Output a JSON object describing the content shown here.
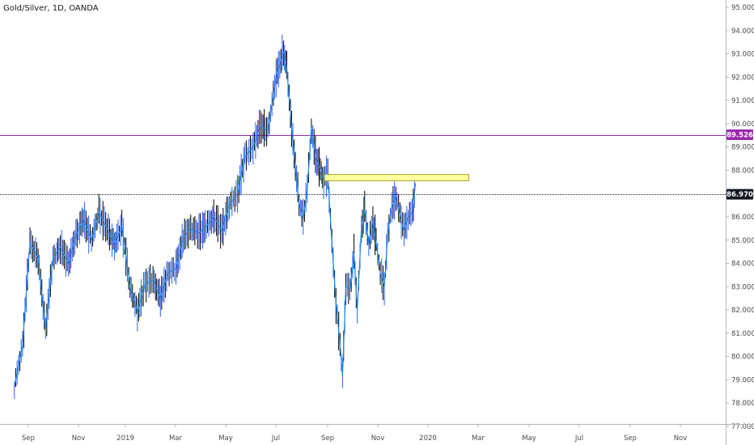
{
  "chart_data": {
    "type": "candlestick",
    "title": "Gold/Silver, 1D, OANDA",
    "xlabel": "",
    "ylabel": "",
    "ylim": [
      76.85,
      95.3
    ],
    "y_ticks": [
      "95.000",
      "94.000",
      "93.000",
      "92.000",
      "91.000",
      "90.000",
      "89.000",
      "88.000",
      "87.000",
      "86.000",
      "85.000",
      "84.000",
      "83.000",
      "82.000",
      "81.000",
      "80.000",
      "79.000",
      "78.000",
      "77.000"
    ],
    "x_ticks": [
      "Sep",
      "Nov",
      "2019",
      "Mar",
      "May",
      "Jul",
      "Sep",
      "Nov",
      "2020",
      "Mar",
      "May",
      "Jul",
      "Sep",
      "Nov"
    ],
    "grid": false,
    "colors": {
      "up": "#2962ff",
      "down": "#000000",
      "line": "#1e88e5",
      "axis_line": "#b2b5be"
    },
    "series": [
      {
        "name": "Gold/Silver",
        "points": [
          {
            "x": "2018-08-15",
            "y": 78.7
          },
          {
            "x": "2018-08-25",
            "y": 80.5
          },
          {
            "x": "2018-09-03",
            "y": 84.9
          },
          {
            "x": "2018-09-13",
            "y": 84.2
          },
          {
            "x": "2018-09-22",
            "y": 81.2
          },
          {
            "x": "2018-10-01",
            "y": 84.2
          },
          {
            "x": "2018-10-10",
            "y": 84.7
          },
          {
            "x": "2018-10-20",
            "y": 84.0
          },
          {
            "x": "2018-10-29",
            "y": 85.2
          },
          {
            "x": "2018-11-07",
            "y": 85.9
          },
          {
            "x": "2018-11-17",
            "y": 85.0
          },
          {
            "x": "2018-11-26",
            "y": 86.2
          },
          {
            "x": "2018-12-06",
            "y": 85.5
          },
          {
            "x": "2018-12-15",
            "y": 84.8
          },
          {
            "x": "2018-12-24",
            "y": 85.6
          },
          {
            "x": "2019-01-03",
            "y": 83.0
          },
          {
            "x": "2019-01-12",
            "y": 81.9
          },
          {
            "x": "2019-01-21",
            "y": 83.1
          },
          {
            "x": "2019-01-31",
            "y": 83.3
          },
          {
            "x": "2019-02-09",
            "y": 82.5
          },
          {
            "x": "2019-02-18",
            "y": 83.6
          },
          {
            "x": "2019-02-28",
            "y": 83.8
          },
          {
            "x": "2019-03-09",
            "y": 85.1
          },
          {
            "x": "2019-03-18",
            "y": 85.5
          },
          {
            "x": "2019-03-28",
            "y": 85.3
          },
          {
            "x": "2019-04-06",
            "y": 85.6
          },
          {
            "x": "2019-04-15",
            "y": 86.0
          },
          {
            "x": "2019-04-25",
            "y": 85.4
          },
          {
            "x": "2019-05-04",
            "y": 86.5
          },
          {
            "x": "2019-05-14",
            "y": 87.0
          },
          {
            "x": "2019-05-23",
            "y": 88.6
          },
          {
            "x": "2019-06-02",
            "y": 89.0
          },
          {
            "x": "2019-06-11",
            "y": 89.9
          },
          {
            "x": "2019-06-20",
            "y": 89.7
          },
          {
            "x": "2019-06-30",
            "y": 92.0
          },
          {
            "x": "2019-07-09",
            "y": 93.1
          },
          {
            "x": "2019-07-13",
            "y": 92.4
          },
          {
            "x": "2019-07-19",
            "y": 89.8
          },
          {
            "x": "2019-07-28",
            "y": 86.6
          },
          {
            "x": "2019-08-02",
            "y": 85.9
          },
          {
            "x": "2019-08-07",
            "y": 87.2
          },
          {
            "x": "2019-08-12",
            "y": 89.8
          },
          {
            "x": "2019-08-17",
            "y": 88.6
          },
          {
            "x": "2019-08-23",
            "y": 88.0
          },
          {
            "x": "2019-08-27",
            "y": 87.6
          },
          {
            "x": "2019-09-01",
            "y": 87.8
          },
          {
            "x": "2019-09-06",
            "y": 84.9
          },
          {
            "x": "2019-09-11",
            "y": 82.3
          },
          {
            "x": "2019-09-16",
            "y": 80.5
          },
          {
            "x": "2019-09-19",
            "y": 79.2
          },
          {
            "x": "2019-09-23",
            "y": 83.0
          },
          {
            "x": "2019-09-28",
            "y": 82.9
          },
          {
            "x": "2019-10-03",
            "y": 84.4
          },
          {
            "x": "2019-10-07",
            "y": 82.0
          },
          {
            "x": "2019-10-12",
            "y": 85.5
          },
          {
            "x": "2019-10-16",
            "y": 86.3
          },
          {
            "x": "2019-10-21",
            "y": 84.8
          },
          {
            "x": "2019-10-26",
            "y": 85.8
          },
          {
            "x": "2019-10-30",
            "y": 84.9
          },
          {
            "x": "2019-11-04",
            "y": 83.6
          },
          {
            "x": "2019-11-09",
            "y": 83.0
          },
          {
            "x": "2019-11-13",
            "y": 85.2
          },
          {
            "x": "2019-11-18",
            "y": 86.4
          },
          {
            "x": "2019-11-23",
            "y": 86.9
          },
          {
            "x": "2019-11-28",
            "y": 86.1
          },
          {
            "x": "2019-12-03",
            "y": 85.4
          },
          {
            "x": "2019-12-08",
            "y": 86.0
          },
          {
            "x": "2019-12-13",
            "y": 86.2
          },
          {
            "x": "2019-12-17",
            "y": 87.45
          }
        ]
      }
    ],
    "horizontal_lines": [
      {
        "label": "89.526",
        "value": 89.526,
        "color": "#9c27b0",
        "style": "solid"
      },
      {
        "label": "86.970",
        "value": 86.97,
        "color": "#131722",
        "style": "dotted"
      }
    ],
    "annotations": [
      {
        "type": "rectangle",
        "x0": "2019-08-28",
        "x1": "2020-02-20",
        "y0": 87.55,
        "y1": 87.82,
        "fill": "#ffff9e",
        "stroke": "#a5a528"
      }
    ]
  }
}
